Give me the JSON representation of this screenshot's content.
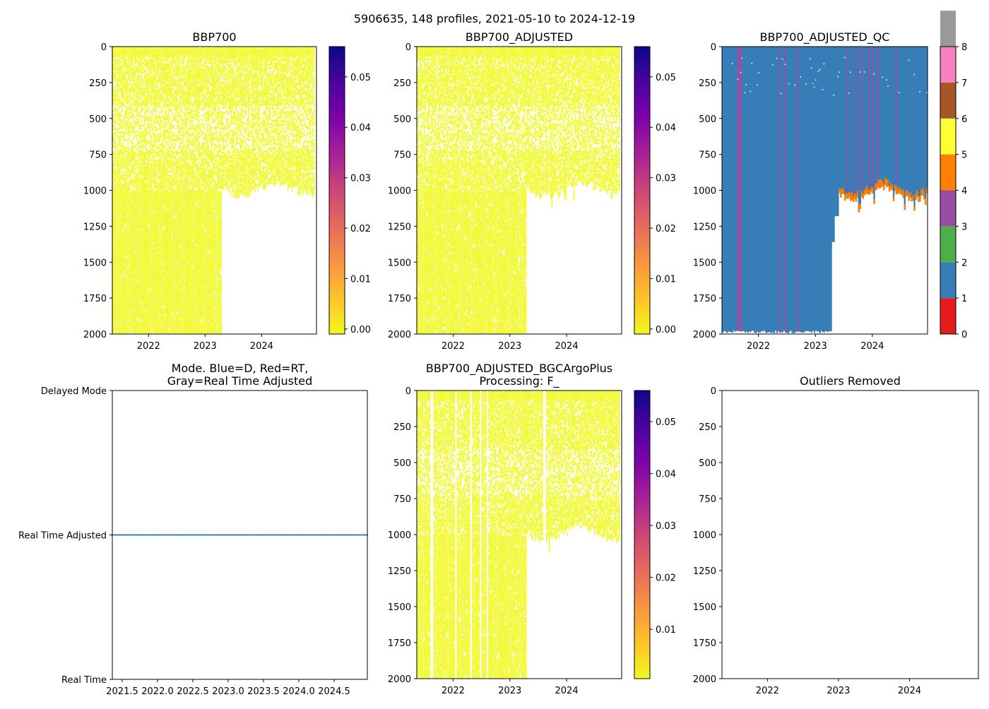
{
  "figure": {
    "suptitle": "5906635, 148 profiles, 2021-05-10 to 2024-12-19"
  },
  "chart_data": [
    {
      "id": "bbp700",
      "type": "heatmap",
      "title": "BBP700",
      "xlim": [
        2021.36,
        2024.97
      ],
      "ylim": [
        2000,
        0
      ],
      "xticks": [
        2022,
        2023,
        2024
      ],
      "xtick_labels": [
        "2022",
        "2023",
        "2024"
      ],
      "yticks": [
        0,
        250,
        500,
        750,
        1000,
        1250,
        1500,
        1750,
        2000
      ],
      "ytick_labels": [
        "0",
        "250",
        "500",
        "750",
        "1000",
        "1250",
        "1500",
        "1750",
        "2000"
      ],
      "colorbar": {
        "colormap": "plasma_r",
        "range": [
          -0.001,
          0.056
        ],
        "ticks": [
          0.0,
          0.01,
          0.02,
          0.03,
          0.04,
          0.05
        ],
        "tick_labels": [
          "0.00",
          "0.01",
          "0.02",
          "0.03",
          "0.04",
          "0.05"
        ]
      },
      "fill_color": "#f0f921",
      "deep_profiles_until": 2023.28,
      "max_depth_early": 2000,
      "shallow_profile_depth_range": [
        970,
        1080
      ]
    },
    {
      "id": "bbp700_adjusted",
      "type": "heatmap",
      "title": "BBP700_ADJUSTED",
      "xlim": [
        2021.36,
        2024.97
      ],
      "ylim": [
        2000,
        0
      ],
      "xticks": [
        2022,
        2023,
        2024
      ],
      "xtick_labels": [
        "2022",
        "2023",
        "2024"
      ],
      "yticks": [
        0,
        250,
        500,
        750,
        1000,
        1250,
        1500,
        1750,
        2000
      ],
      "ytick_labels": [
        "0",
        "250",
        "500",
        "750",
        "1000",
        "1250",
        "1500",
        "1750",
        "2000"
      ],
      "colorbar": {
        "colormap": "plasma_r",
        "range": [
          -0.001,
          0.056
        ],
        "ticks": [
          0.0,
          0.01,
          0.02,
          0.03,
          0.04,
          0.05
        ],
        "tick_labels": [
          "0.00",
          "0.01",
          "0.02",
          "0.03",
          "0.04",
          "0.05"
        ]
      },
      "fill_color": "#f0f921",
      "deep_profiles_until": 2023.28
    },
    {
      "id": "bbp700_adjusted_qc",
      "type": "heatmap",
      "title": "BBP700_ADJUSTED_QC",
      "xlim": [
        2021.36,
        2024.97
      ],
      "ylim": [
        2000,
        0
      ],
      "xticks": [
        2022,
        2023,
        2024
      ],
      "xtick_labels": [
        "2022",
        "2023",
        "2024"
      ],
      "yticks": [
        0,
        250,
        500,
        750,
        1000,
        1250,
        1500,
        1750,
        2000
      ],
      "ytick_labels": [
        "0",
        "250",
        "500",
        "750",
        "1000",
        "1250",
        "1500",
        "1750",
        "2000"
      ],
      "dominant_flag": 1,
      "flag3_profile_dates": [
        2021.62,
        2021.65,
        2021.68,
        2022.35,
        2022.45,
        2022.67,
        2023.55,
        2023.7,
        2023.8,
        2023.92,
        2024.0,
        2024.1,
        2024.42
      ],
      "flag4_depth_range": [
        950,
        1010
      ],
      "colorbar": {
        "range": [
          0,
          8
        ],
        "ticks": [
          0,
          1,
          2,
          3,
          4,
          5,
          6,
          7,
          8
        ],
        "tick_labels": [
          "0",
          "1",
          "2",
          "3",
          "4",
          "5",
          "6",
          "7",
          "8"
        ],
        "colors": [
          "#e41a1c",
          "#377eb8",
          "#4daf4a",
          "#984ea3",
          "#ff7f00",
          "#ffff33",
          "#a65628",
          "#f781bf",
          "#999999"
        ]
      }
    },
    {
      "id": "mode",
      "type": "line",
      "title_lines": [
        "Mode. Blue=D, Red=RT,",
        "Gray=Real Time Adjusted"
      ],
      "xlim": [
        2021.36,
        2024.97
      ],
      "xticks": [
        2021.5,
        2022.0,
        2022.5,
        2023.0,
        2023.5,
        2024.0,
        2024.5
      ],
      "xtick_labels": [
        "2021.5",
        "2022.0",
        "2022.5",
        "2023.0",
        "2023.5",
        "2024.0",
        "2024.5"
      ],
      "ylim": [
        0,
        2
      ],
      "yticks": [
        0,
        1,
        2
      ],
      "ytick_labels": [
        "Real Time",
        "Real Time Adjusted",
        "Delayed Mode"
      ],
      "series": [
        {
          "name": "mode",
          "color": "#1f77b4",
          "x_start": 2021.36,
          "x_end": 2024.97,
          "n_points": 148,
          "value": 1
        }
      ]
    },
    {
      "id": "bgcargoplus",
      "type": "heatmap",
      "title_lines": [
        "BBP700_ADJUSTED_BGCArgoPlus",
        "Processing: F_"
      ],
      "xlim": [
        2021.36,
        2024.97
      ],
      "ylim": [
        2000,
        0
      ],
      "xticks": [
        2022,
        2023,
        2024
      ],
      "xtick_labels": [
        "2022",
        "2023",
        "2024"
      ],
      "yticks": [
        0,
        250,
        500,
        750,
        1000,
        1250,
        1500,
        1750,
        2000
      ],
      "ytick_labels": [
        "0",
        "250",
        "500",
        "750",
        "1000",
        "1250",
        "1500",
        "1750",
        "2000"
      ],
      "colorbar": {
        "colormap": "plasma_r",
        "range": [
          0.0005,
          0.056
        ],
        "ticks": [
          0.01,
          0.02,
          0.03,
          0.04,
          0.05
        ],
        "tick_labels": [
          "0.01",
          "0.02",
          "0.03",
          "0.04",
          "0.05"
        ]
      },
      "fill_color": "#f0f921",
      "gap_profile_dates": [
        2021.6,
        2021.62,
        2022.05,
        2022.3,
        2022.48,
        2022.6,
        2023.58,
        2023.62
      ],
      "deep_profiles_until": 2023.28
    },
    {
      "id": "outliers",
      "type": "scatter",
      "title": "Outliers Removed",
      "xlim": [
        2021.36,
        2024.97
      ],
      "ylim": [
        2000,
        0
      ],
      "xticks": [
        2022,
        2023,
        2024
      ],
      "xtick_labels": [
        "2022",
        "2023",
        "2024"
      ],
      "yticks": [
        0,
        250,
        500,
        750,
        1000,
        1250,
        1500,
        1750,
        2000
      ],
      "ytick_labels": [
        "0",
        "250",
        "500",
        "750",
        "1000",
        "1250",
        "1500",
        "1750",
        "2000"
      ],
      "points": []
    }
  ]
}
